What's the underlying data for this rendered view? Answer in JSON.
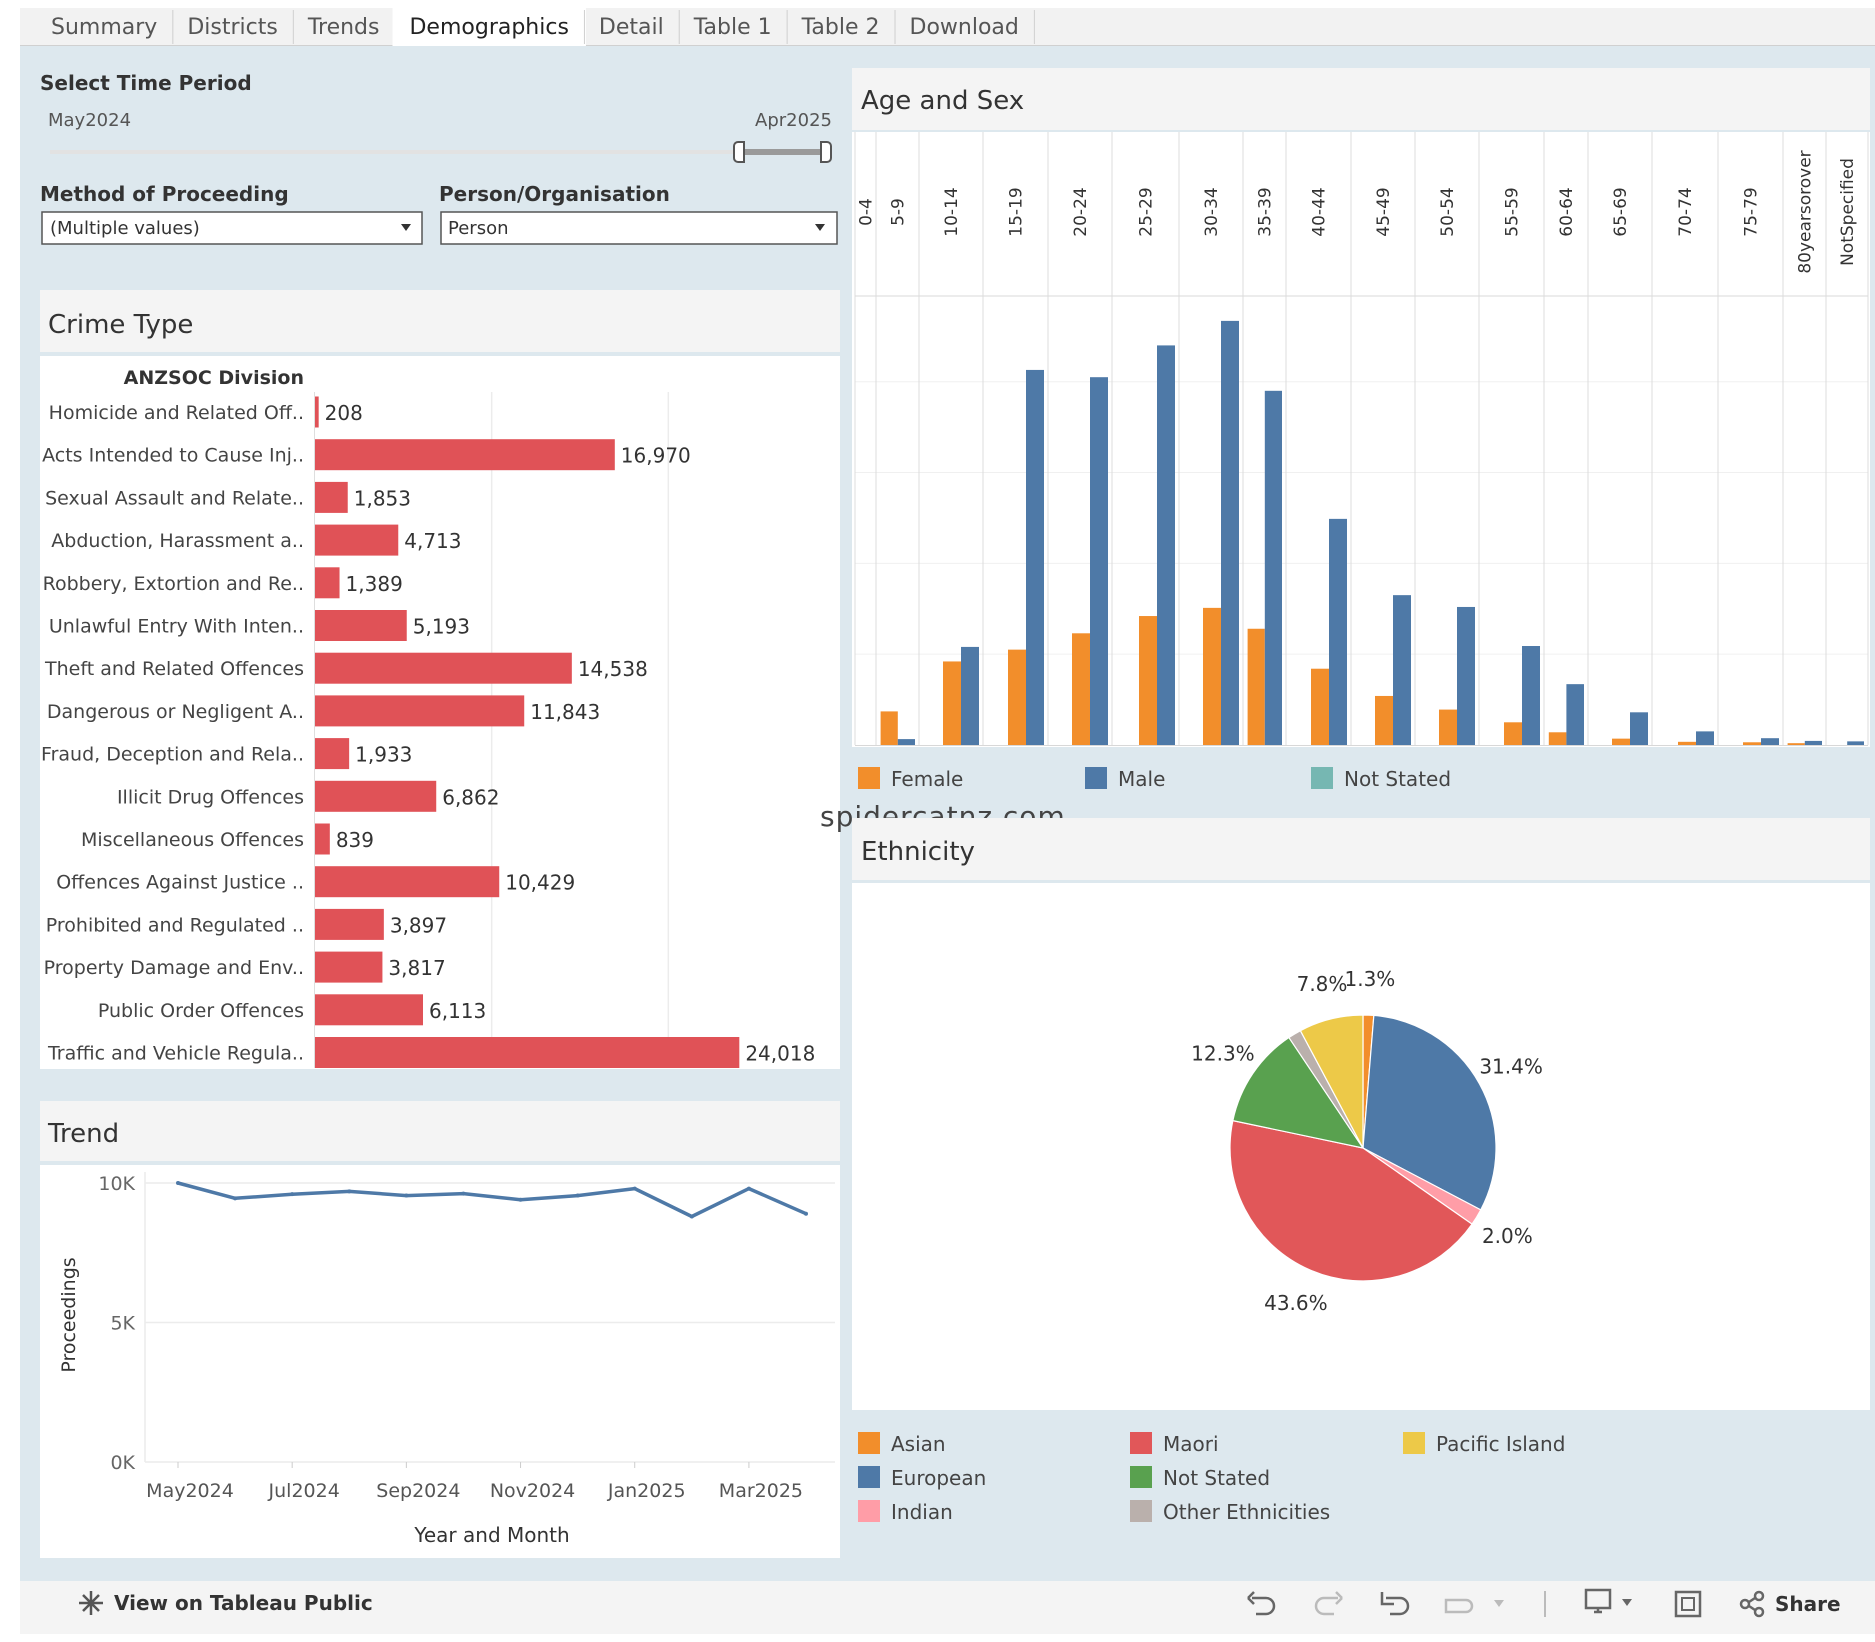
{
  "tabs": [
    "Summary",
    "Districts",
    "Trends",
    "Demographics",
    "Detail",
    "Table 1",
    "Table 2",
    "Download"
  ],
  "active_tab": "Demographics",
  "filters": {
    "time_period": {
      "label": "Select Time Period",
      "start": "May2024",
      "end": "Apr2025"
    },
    "method": {
      "label": "Method of Proceeding",
      "value": "(Multiple values)"
    },
    "person_org": {
      "label": "Person/Organisation",
      "value": "Person"
    }
  },
  "watermark": "spidercatnz.com",
  "footer": {
    "tableau_link": "View on Tableau Public",
    "share": "Share"
  },
  "colors": {
    "crime_bar": "#e05257",
    "female": "#f28e2b",
    "male": "#4e79a7",
    "not_stated": "#76b7b2",
    "asian": "#f28e2b",
    "european": "#4e79a7",
    "indian": "#ff9da7",
    "maori": "#e15759",
    "not_stated_eth": "#59a14f",
    "other": "#bab0ac",
    "pacific": "#edc948",
    "trend_line": "#4e79a7"
  },
  "chart_data": [
    {
      "id": "crime_type",
      "type": "bar",
      "title": "Crime Type",
      "column_header": "ANZSOC Division",
      "categories": [
        "Homicide and Related Off..",
        "Acts Intended to Cause Inj..",
        "Sexual Assault and Relate..",
        "Abduction, Harassment a..",
        "Robbery, Extortion and Re..",
        "Unlawful Entry With Inten..",
        "Theft and Related Offences",
        "Dangerous or Negligent A..",
        "Fraud, Deception and Rela..",
        "Illicit Drug Offences",
        "Miscellaneous Offences",
        "Offences Against Justice ..",
        "Prohibited and Regulated ..",
        "Property Damage and Env..",
        "Public Order Offences",
        "Traffic and Vehicle Regula.."
      ],
      "values": [
        208,
        16970,
        1853,
        4713,
        1389,
        5193,
        14538,
        11843,
        1933,
        6862,
        839,
        10429,
        3897,
        3817,
        6113,
        24018
      ],
      "labels": [
        "208",
        "16,970",
        "1,853",
        "4,713",
        "1,389",
        "5,193",
        "14,538",
        "11,843",
        "1,933",
        "6,862",
        "839",
        "10,429",
        "3,897",
        "3,817",
        "6,113",
        "24,018"
      ],
      "xlim": [
        0,
        30000
      ]
    },
    {
      "id": "trend",
      "type": "line",
      "title": "Trend",
      "xlabel": "Year and Month",
      "ylabel": "Proceedings",
      "x": [
        "May2024",
        "Jun2024",
        "Jul2024",
        "Aug2024",
        "Sep2024",
        "Oct2024",
        "Nov2024",
        "Dec2024",
        "Jan2025",
        "Feb2025",
        "Mar2025",
        "Apr2025"
      ],
      "x_tick_labels": [
        "May2024",
        "Jul2024",
        "Sep2024",
        "Nov2024",
        "Jan2025",
        "Mar2025"
      ],
      "values": [
        10000,
        9450,
        9600,
        9700,
        9550,
        9620,
        9400,
        9550,
        9800,
        8800,
        9800,
        8900
      ],
      "y_ticks": [
        "10K",
        "5K",
        "0K"
      ],
      "ylim": [
        0,
        10500
      ]
    },
    {
      "id": "age_sex",
      "type": "bar",
      "title": "Age and Sex",
      "categories": [
        "0-4",
        "5-9",
        "10-14",
        "15-19",
        "20-24",
        "25-29",
        "30-34",
        "35-39",
        "40-44",
        "45-49",
        "50-54",
        "55-59",
        "60-64",
        "65-69",
        "70-74",
        "75-79",
        "80yearsorover",
        "NotSpecified"
      ],
      "series": [
        {
          "name": "Female",
          "values": [
            0,
            370,
            920,
            1050,
            1230,
            1420,
            1510,
            1280,
            840,
            540,
            390,
            250,
            140,
            70,
            35,
            30,
            20,
            0
          ]
        },
        {
          "name": "Male",
          "values": [
            0,
            65,
            1080,
            4130,
            4050,
            4400,
            4670,
            3900,
            2490,
            1650,
            1520,
            1090,
            670,
            360,
            150,
            75,
            45,
            40
          ]
        },
        {
          "name": "Not Stated",
          "values": [
            0,
            0,
            0,
            0,
            0,
            0,
            0,
            0,
            0,
            0,
            0,
            0,
            0,
            0,
            0,
            0,
            0,
            0
          ]
        }
      ],
      "ylim": [
        0,
        4900
      ]
    },
    {
      "id": "ethnicity",
      "type": "pie",
      "title": "Ethnicity",
      "slices": [
        {
          "name": "Asian",
          "value": 1.3,
          "label": "1.3%"
        },
        {
          "name": "European",
          "value": 31.4,
          "label": "31.4%"
        },
        {
          "name": "Indian",
          "value": 2.0,
          "label": "2.0%"
        },
        {
          "name": "Maori",
          "value": 43.6,
          "label": "43.6%"
        },
        {
          "name": "Not Stated",
          "value": 12.3,
          "label": "12.3%"
        },
        {
          "name": "Other Ethnicities",
          "value": 1.6,
          "label": ""
        },
        {
          "name": "Pacific Island",
          "value": 7.8,
          "label": "7.8%"
        }
      ]
    }
  ]
}
